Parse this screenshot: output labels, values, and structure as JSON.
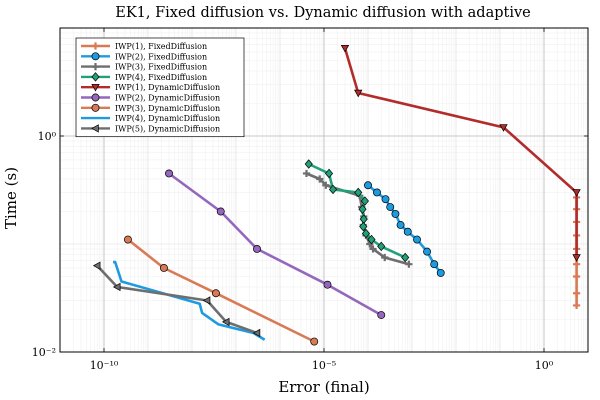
{
  "chart_data": {
    "type": "line",
    "title": "EK1, Fixed diffusion vs. Dynamic diffusion with adaptive",
    "xlabel": "Error (final)",
    "ylabel": "Time (s)",
    "x_scale": "log",
    "y_scale": "log",
    "xlim": [
      1e-11,
      10
    ],
    "ylim": [
      0.01,
      10
    ],
    "x_ticks": [
      {
        "value": 1e-10,
        "label": "10⁻¹⁰"
      },
      {
        "value": 1e-05,
        "label": "10⁻⁵"
      },
      {
        "value": 1,
        "label": "10⁰"
      }
    ],
    "y_ticks": [
      {
        "value": 0.01,
        "label": "10⁻²"
      },
      {
        "value": 1,
        "label": "10⁰"
      }
    ],
    "grid": true,
    "legend_position": "top-left",
    "series": [
      {
        "name": "IWP(1), FixedDiffusion",
        "color": "#d97a56",
        "marker": "cross",
        "x": [
          5.5,
          5.5,
          5.5,
          5.5,
          5.5,
          5.5,
          5.5,
          5.5,
          5.5
        ],
        "y": [
          0.027,
          0.035,
          0.05,
          0.065,
          0.09,
          0.12,
          0.16,
          0.21,
          0.27
        ]
      },
      {
        "name": "IWP(2), FixedDiffusion",
        "color": "#1e9be0",
        "marker": "circle",
        "x": [
          0.0001,
          0.00016,
          0.00025,
          0.00032,
          0.00042,
          0.00055,
          0.0008,
          0.0013,
          0.0022,
          0.0032,
          0.0045
        ],
        "y": [
          0.35,
          0.3,
          0.26,
          0.22,
          0.19,
          0.15,
          0.13,
          0.11,
          0.085,
          0.065,
          0.054
        ]
      },
      {
        "name": "IWP(3), FixedDiffusion",
        "color": "#6e6e6e",
        "marker": "cross",
        "x": [
          4e-06,
          8e-06,
          1.1e-05,
          6.5e-05,
          7.2e-05,
          8e-05,
          7.8e-05,
          9e-05,
          0.00011,
          0.00013,
          0.00024,
          0.00085
        ],
        "y": [
          0.45,
          0.4,
          0.35,
          0.28,
          0.22,
          0.18,
          0.15,
          0.12,
          0.1,
          0.09,
          0.075,
          0.065
        ]
      },
      {
        "name": "IWP(4), FixedDiffusion",
        "color": "#22a079",
        "marker": "diamond",
        "x": [
          4.5e-06,
          1.3e-05,
          1.6e-05,
          6e-05,
          8.5e-05,
          7.5e-05,
          8e-05,
          7.8e-05,
          9e-05,
          0.00012,
          0.0002,
          0.0007
        ],
        "y": [
          0.55,
          0.45,
          0.32,
          0.3,
          0.25,
          0.21,
          0.17,
          0.145,
          0.125,
          0.11,
          0.095,
          0.075
        ]
      },
      {
        "name": "IWP(1), DynamicDiffusion",
        "color": "#b22c2c",
        "marker": "triangle-down",
        "x": [
          3e-05,
          6e-05,
          0.12,
          5.5,
          5.5
        ],
        "y": [
          6.5,
          2.5,
          1.2,
          0.3,
          0.075
        ]
      },
      {
        "name": "IWP(2), DynamicDiffusion",
        "color": "#9467bd",
        "marker": "circle",
        "x": [
          3e-09,
          4.5e-08,
          3e-07,
          1.2e-05,
          0.0002
        ],
        "y": [
          0.45,
          0.2,
          0.09,
          0.042,
          0.022
        ]
      },
      {
        "name": "IWP(3), DynamicDiffusion",
        "color": "#d97a56",
        "marker": "circle",
        "x": [
          3.5e-10,
          2.3e-09,
          3.5e-08,
          6e-06
        ],
        "y": [
          0.11,
          0.06,
          0.035,
          0.0125
        ]
      },
      {
        "name": "IWP(4), DynamicDiffusion",
        "color": "#1e9be0",
        "marker": "none",
        "x": [
          1.6e-10,
          1.8e-10,
          2.5e-10,
          1.5e-08,
          1.7e-08,
          4e-08,
          2.5e-07,
          4.5e-07
        ],
        "y": [
          0.068,
          0.068,
          0.045,
          0.028,
          0.023,
          0.018,
          0.015,
          0.013
        ]
      },
      {
        "name": "IWP(5), DynamicDiffusion",
        "color": "#6e6e6e",
        "marker": "triangle-left",
        "x": [
          7e-11,
          2e-10,
          2.2e-08,
          6e-08,
          3e-07
        ],
        "y": [
          0.063,
          0.04,
          0.03,
          0.019,
          0.015
        ]
      }
    ]
  }
}
